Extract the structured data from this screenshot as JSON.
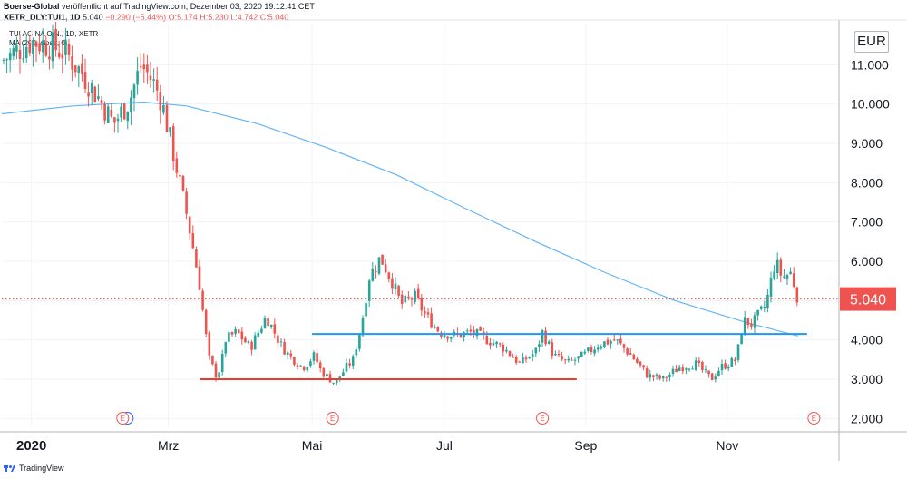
{
  "header": {
    "publisher": "Boerse-Global",
    "published_text": "veröffentlicht auf TradingView.com, Dezember 03, 2020 19:12:41 CET"
  },
  "symbol_line": {
    "ticker": "XETR_DLY:TUI1, 1D",
    "last": "5.040",
    "change": "−0.290 (−5.44%)",
    "ohlc": "O:5.174 H:5.230 L:4.742 C:5.040"
  },
  "legend": {
    "instrument": "TUI AG NA O.N., 1D, XETR",
    "indicator": "MA (200, close, 0)"
  },
  "currency_label": "EUR",
  "price_badge": "5.040",
  "branding": "TradingView",
  "colors": {
    "up": "#26a69a",
    "down": "#ef5350",
    "ma": "#64b5f6",
    "support_line": "#2196f3",
    "low_line": "#ef3b2c",
    "last_price": "#ef5350"
  },
  "chart_data": {
    "type": "candlestick",
    "xlabel": "",
    "ylabel": "",
    "y_range": [
      1.8,
      12.0
    ],
    "y_ticks": [
      "2.000",
      "3.000",
      "4.000",
      "5.000",
      "6.000",
      "7.000",
      "8.000",
      "9.000",
      "10.000",
      "11.000"
    ],
    "x_tick_labels": [
      {
        "label": "2020",
        "date": "2020-01-02"
      },
      {
        "label": "Mrz",
        "date": "2020-03-02"
      },
      {
        "label": "Mai",
        "date": "2020-05-04"
      },
      {
        "label": "Jul",
        "date": "2020-07-01"
      },
      {
        "label": "Sep",
        "date": "2020-09-01"
      },
      {
        "label": "Nov",
        "date": "2020-11-02"
      }
    ],
    "earnings_markers": [
      {
        "label": "E",
        "date": "2020-02-11"
      },
      {
        "label": "E",
        "date": "2020-05-13"
      },
      {
        "label": "E",
        "date": "2020-08-13"
      },
      {
        "label": "E",
        "date": "2020-12-10"
      }
    ],
    "last_close": 5.04,
    "horizontal_lines": [
      {
        "name": "resistance",
        "value": 4.15,
        "from": "2020-05-04",
        "to": "2020-12-07"
      },
      {
        "name": "support",
        "value": 3.0,
        "from": "2020-03-16",
        "to": "2020-08-28"
      }
    ],
    "price_path": [
      {
        "date": "2019-12-20",
        "close": 11.1
      },
      {
        "date": "2020-01-02",
        "close": 11.6
      },
      {
        "date": "2020-01-10",
        "close": 11.5
      },
      {
        "date": "2020-01-17",
        "close": 11.3
      },
      {
        "date": "2020-01-24",
        "close": 10.8
      },
      {
        "date": "2020-01-31",
        "close": 10.2
      },
      {
        "date": "2020-02-07",
        "close": 9.5
      },
      {
        "date": "2020-02-14",
        "close": 10.1
      },
      {
        "date": "2020-02-19",
        "close": 11.0
      },
      {
        "date": "2020-02-24",
        "close": 10.6
      },
      {
        "date": "2020-02-28",
        "close": 10.1
      },
      {
        "date": "2020-03-04",
        "close": 8.8
      },
      {
        "date": "2020-03-10",
        "close": 7.2
      },
      {
        "date": "2020-03-13",
        "close": 6.3
      },
      {
        "date": "2020-03-16",
        "close": 5.3
      },
      {
        "date": "2020-03-18",
        "close": 4.3
      },
      {
        "date": "2020-03-20",
        "close": 3.5
      },
      {
        "date": "2020-03-23",
        "close": 3.1
      },
      {
        "date": "2020-03-25",
        "close": 3.3
      },
      {
        "date": "2020-03-27",
        "close": 4.0
      },
      {
        "date": "2020-04-01",
        "close": 4.2
      },
      {
        "date": "2020-04-07",
        "close": 3.8
      },
      {
        "date": "2020-04-14",
        "close": 4.6
      },
      {
        "date": "2020-04-20",
        "close": 3.9
      },
      {
        "date": "2020-04-24",
        "close": 3.6
      },
      {
        "date": "2020-04-30",
        "close": 3.3
      },
      {
        "date": "2020-05-05",
        "close": 3.6
      },
      {
        "date": "2020-05-08",
        "close": 3.2
      },
      {
        "date": "2020-05-14",
        "close": 2.9
      },
      {
        "date": "2020-05-19",
        "close": 3.3
      },
      {
        "date": "2020-05-22",
        "close": 3.5
      },
      {
        "date": "2020-05-26",
        "close": 4.5
      },
      {
        "date": "2020-05-29",
        "close": 5.6
      },
      {
        "date": "2020-06-03",
        "close": 6.1
      },
      {
        "date": "2020-06-08",
        "close": 5.5
      },
      {
        "date": "2020-06-12",
        "close": 4.9
      },
      {
        "date": "2020-06-18",
        "close": 5.1
      },
      {
        "date": "2020-06-23",
        "close": 4.6
      },
      {
        "date": "2020-06-29",
        "close": 4.2
      },
      {
        "date": "2020-07-06",
        "close": 4.1
      },
      {
        "date": "2020-07-13",
        "close": 4.2
      },
      {
        "date": "2020-07-20",
        "close": 4.0
      },
      {
        "date": "2020-07-27",
        "close": 3.8
      },
      {
        "date": "2020-08-03",
        "close": 3.4
      },
      {
        "date": "2020-08-10",
        "close": 3.7
      },
      {
        "date": "2020-08-13",
        "close": 4.2
      },
      {
        "date": "2020-08-18",
        "close": 3.6
      },
      {
        "date": "2020-08-24",
        "close": 3.4
      },
      {
        "date": "2020-08-31",
        "close": 3.6
      },
      {
        "date": "2020-09-07",
        "close": 3.9
      },
      {
        "date": "2020-09-14",
        "close": 4.0
      },
      {
        "date": "2020-09-21",
        "close": 3.6
      },
      {
        "date": "2020-09-28",
        "close": 3.1
      },
      {
        "date": "2020-10-05",
        "close": 3.0
      },
      {
        "date": "2020-10-12",
        "close": 3.3
      },
      {
        "date": "2020-10-19",
        "close": 3.4
      },
      {
        "date": "2020-10-26",
        "close": 3.0
      },
      {
        "date": "2020-10-30",
        "close": 3.3
      },
      {
        "date": "2020-11-06",
        "close": 3.5
      },
      {
        "date": "2020-11-09",
        "close": 4.5
      },
      {
        "date": "2020-11-13",
        "close": 4.4
      },
      {
        "date": "2020-11-19",
        "close": 4.9
      },
      {
        "date": "2020-11-23",
        "close": 6.0
      },
      {
        "date": "2020-11-26",
        "close": 5.6
      },
      {
        "date": "2020-11-30",
        "close": 5.7
      },
      {
        "date": "2020-12-03",
        "close": 5.04
      }
    ],
    "series": [
      {
        "name": "MA (200, close, 0)",
        "type": "line",
        "points": [
          {
            "date": "2019-12-20",
            "value": 9.75
          },
          {
            "date": "2020-01-20",
            "value": 9.95
          },
          {
            "date": "2020-02-20",
            "value": 10.05
          },
          {
            "date": "2020-03-10",
            "value": 9.95
          },
          {
            "date": "2020-04-10",
            "value": 9.5
          },
          {
            "date": "2020-05-10",
            "value": 8.9
          },
          {
            "date": "2020-06-10",
            "value": 8.2
          },
          {
            "date": "2020-07-10",
            "value": 7.35
          },
          {
            "date": "2020-08-10",
            "value": 6.5
          },
          {
            "date": "2020-09-10",
            "value": 5.7
          },
          {
            "date": "2020-10-10",
            "value": 5.0
          },
          {
            "date": "2020-11-10",
            "value": 4.45
          },
          {
            "date": "2020-12-03",
            "value": 4.1
          }
        ]
      }
    ]
  }
}
